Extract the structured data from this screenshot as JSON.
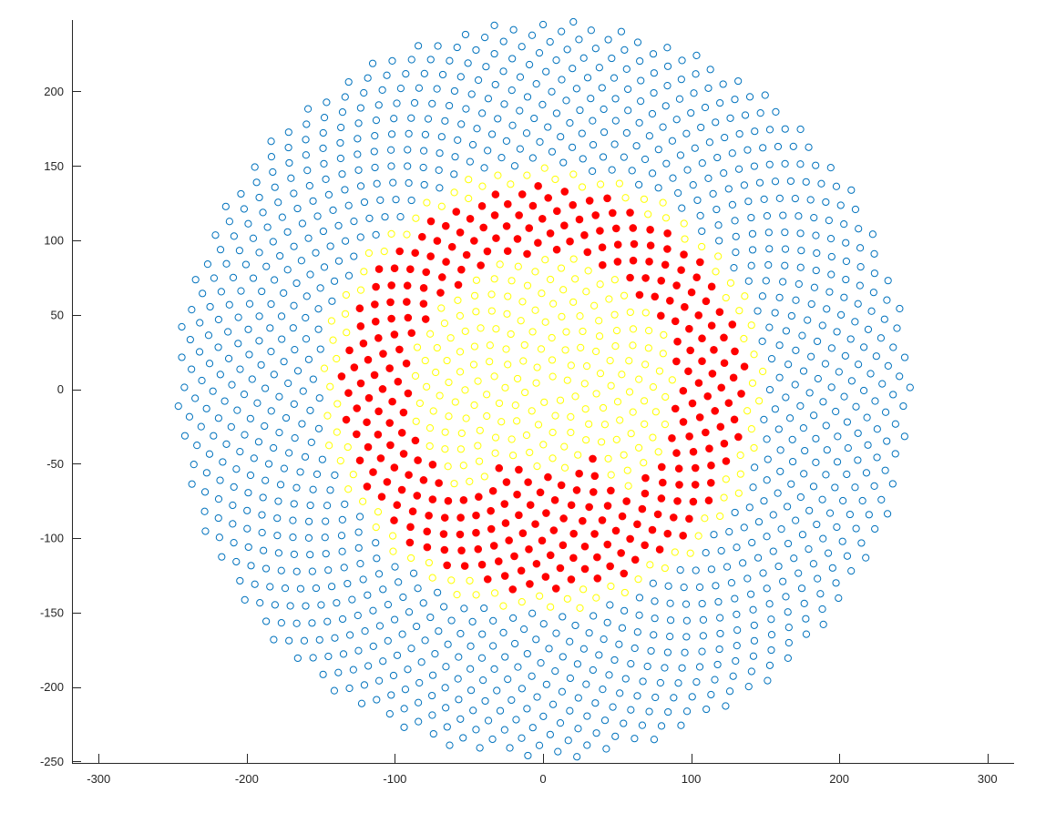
{
  "chart_data": {
    "type": "scatter",
    "title": "",
    "xlabel": "",
    "ylabel": "",
    "xlim": [
      -318,
      318
    ],
    "ylim": [
      -251,
      248
    ],
    "xticks": [
      -300,
      -200,
      -100,
      0,
      100,
      200,
      300
    ],
    "yticks": [
      -250,
      -200,
      -150,
      -100,
      -50,
      0,
      50,
      100,
      150,
      200
    ],
    "xtick_labels": [
      "-300",
      "-200",
      "-100",
      "0",
      "100",
      "200",
      "300"
    ],
    "ytick_labels": [
      "-250",
      "-200",
      "-150",
      "-100",
      "-50",
      "0",
      "50",
      "100",
      "150",
      "200"
    ],
    "grid": false,
    "legend": "none",
    "box": "left-bottom axes only",
    "pattern": {
      "description": "Sunflower (golden-angle) spiral of points; point k at radius 6.2*sqrt(k) and angle k*137.508 degrees",
      "n_points": 1600,
      "radial_scale": 6.2,
      "golden_angle_deg": 137.508
    },
    "series": [
      {
        "marker": "open-circle",
        "color": "#0072BD",
        "region": "r > 150",
        "r_range": [
          150,
          250
        ]
      },
      {
        "marker": "open-circle",
        "color": "#FFFF00",
        "region": "r <= 150 and not in red region",
        "r_range": [
          0,
          150
        ]
      },
      {
        "marker": "filled-circle",
        "color": "#FF0000",
        "region": "annulus 90 <= r <= 137 plus inner bottom sector 55 <= r < 90 for angles -122 to -52 degrees",
        "r_range": [
          55,
          137
        ],
        "inner_sector_deg": [
          -122,
          -52
        ]
      }
    ]
  }
}
